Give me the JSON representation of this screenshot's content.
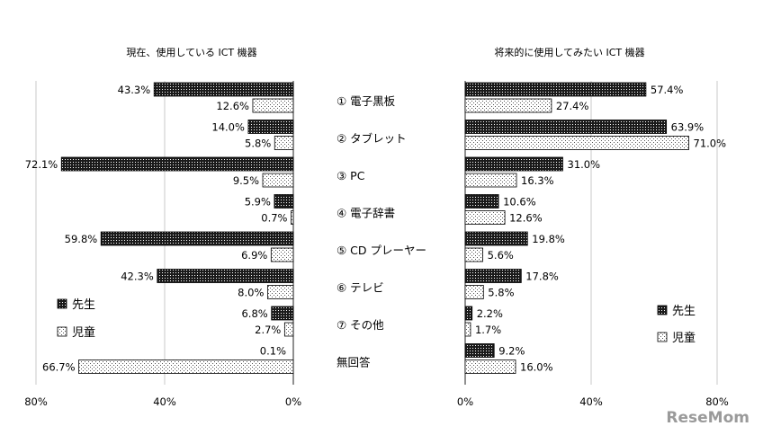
{
  "chart_data": {
    "type": "bar",
    "categories": [
      "① 電子黒板",
      "② タブレット",
      "③ PC",
      "④ 電子辞書",
      "⑤ CD プレーヤー",
      "⑥ テレビ",
      "⑦ その他",
      "無回答"
    ],
    "legend": [
      "先生",
      "児童"
    ],
    "colors": {
      "teacher": "#1a1a1a",
      "student": "#ffffff",
      "axis": "#555555"
    },
    "left_panel": {
      "title": "現在、使用している ICT 機器",
      "xlim": [
        0,
        80
      ],
      "ticks": [
        "80%",
        "40%",
        "0%"
      ],
      "series": [
        {
          "name": "先生",
          "values": [
            43.3,
            14.0,
            72.1,
            5.9,
            59.8,
            42.3,
            6.8,
            null
          ],
          "labels": [
            "43.3%",
            "14.0%",
            "72.1%",
            "5.9%",
            "59.8%",
            "42.3%",
            "6.8%",
            ""
          ]
        },
        {
          "name": "児童",
          "values": [
            12.6,
            5.8,
            9.5,
            0.7,
            6.9,
            8.0,
            2.7,
            66.7
          ],
          "labels": [
            "12.6%",
            "5.8%",
            "9.5%",
            "0.7%",
            "6.9%",
            "8.0%",
            "2.7%",
            "66.7%"
          ]
        }
      ],
      "extra_label": "0.1%"
    },
    "right_panel": {
      "title": "将来的に使用してみたい ICT 機器",
      "xlim": [
        0,
        80
      ],
      "ticks": [
        "0%",
        "40%",
        "80%"
      ],
      "series": [
        {
          "name": "先生",
          "values": [
            57.4,
            63.9,
            31.0,
            10.6,
            19.8,
            17.8,
            2.2,
            9.2
          ],
          "labels": [
            "57.4%",
            "63.9%",
            "31.0%",
            "10.6%",
            "19.8%",
            "17.8%",
            "2.2%",
            "9.2%"
          ]
        },
        {
          "name": "児童",
          "values": [
            27.4,
            71.0,
            16.3,
            12.6,
            5.6,
            5.8,
            1.7,
            16.0
          ],
          "labels": [
            "27.4%",
            "71.0%",
            "16.3%",
            "12.6%",
            "5.6%",
            "5.8%",
            "1.7%",
            "16.0%"
          ]
        }
      ]
    },
    "watermark": "ReseMom"
  }
}
